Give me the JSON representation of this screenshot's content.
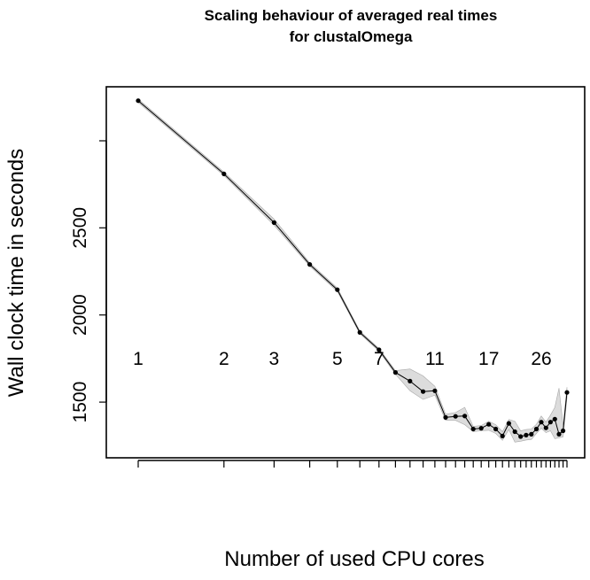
{
  "chart_data": {
    "type": "line",
    "title_lines": [
      "Scaling behaviour of averaged real times",
      "for clustalOmega"
    ],
    "xlabel": "Number of used CPU cores",
    "ylabel": "Wall clock time in seconds",
    "x_scale": "log",
    "xlim": [
      1,
      32
    ],
    "ylim": [
      1180,
      3310
    ],
    "x_tick_labels": [
      "1",
      "2",
      "3",
      "5",
      "7",
      "11",
      "17",
      "26"
    ],
    "x_ticks_unlabeled": [
      4,
      6,
      8,
      9,
      10,
      12,
      13,
      14,
      15,
      16,
      18,
      19,
      20,
      21,
      22,
      23,
      24,
      25,
      27,
      28,
      29,
      30,
      31,
      32
    ],
    "y_tick_labels": [
      "1500",
      "2000",
      "2500"
    ],
    "y_ticks_unlabeled": [
      3000
    ],
    "grid": false,
    "series": [
      {
        "x": [
          1,
          2,
          3,
          4,
          5,
          6,
          7,
          8,
          9,
          10,
          11,
          12,
          13,
          14,
          15,
          16,
          17,
          18,
          19,
          20,
          21,
          22,
          23,
          24,
          25,
          26,
          27,
          28,
          29,
          30,
          31,
          32
        ],
        "y": [
          3230,
          2810,
          2530,
          2290,
          2145,
          1900,
          1800,
          1670,
          1620,
          1560,
          1565,
          1412,
          1418,
          1420,
          1345,
          1350,
          1372,
          1345,
          1305,
          1378,
          1330,
          1302,
          1310,
          1315,
          1345,
          1385,
          1352,
          1385,
          1402,
          1315,
          1335,
          1555
        ],
        "band_lower": [
          3220,
          2800,
          2515,
          2280,
          2135,
          1892,
          1792,
          1660,
          1565,
          1515,
          1540,
          1395,
          1395,
          1370,
          1330,
          1335,
          1338,
          1320,
          1280,
          1342,
          1270,
          1275,
          1282,
          1285,
          1320,
          1350,
          1325,
          1335,
          1290,
          1295,
          1300,
          1525
        ],
        "band_upper": [
          3240,
          2820,
          2550,
          2300,
          2155,
          1908,
          1808,
          1680,
          1690,
          1650,
          1590,
          1430,
          1440,
          1470,
          1360,
          1365,
          1390,
          1370,
          1330,
          1400,
          1390,
          1335,
          1342,
          1345,
          1372,
          1420,
          1385,
          1425,
          1470,
          1580,
          1365,
          1585
        ]
      }
    ],
    "colors": {
      "line": "#000000",
      "band": "#dcdcdc",
      "band_edge": "#a8a8a8",
      "axis": "#000000"
    }
  }
}
